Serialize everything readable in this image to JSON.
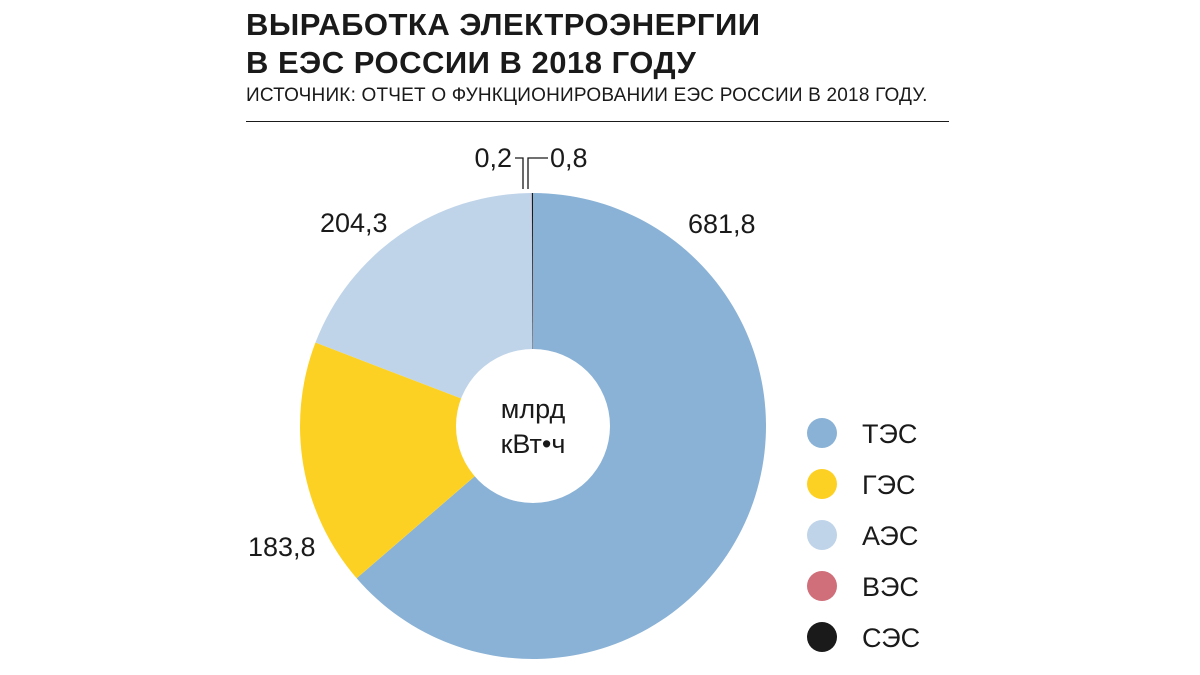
{
  "header": {
    "title_line1": "ВЫРАБОТКА ЭЛЕКТРОЭНЕРГИИ",
    "title_line2": "В ЕЭС РОССИИ В 2018 ГОДУ",
    "source": "ИСТОЧНИК: ОТЧЕТ О ФУНКЦИОНИРОВАНИИ ЕЭС РОССИИ В 2018 ГОДУ."
  },
  "chart_data": {
    "type": "pie",
    "title": "ВЫРАБОТКА ЭЛЕКТРОЭНЕРГИИ В ЕЭС РОССИИ В 2018 ГОДУ",
    "center_label_line1": "млрд",
    "center_label_line2": "кВт•ч",
    "categories": [
      "ТЭС",
      "ГЭС",
      "АЭС",
      "ВЭС",
      "СЭС"
    ],
    "values": [
      681.8,
      183.8,
      204.3,
      0.2,
      0.8
    ],
    "value_labels": [
      "681,8",
      "183,8",
      "204,3",
      "0,2",
      "0,8"
    ],
    "colors": [
      "#8ab2d6",
      "#fdd124",
      "#bfd4e9",
      "#d06e7a",
      "#1a1a1a"
    ],
    "legend_position": "right"
  }
}
